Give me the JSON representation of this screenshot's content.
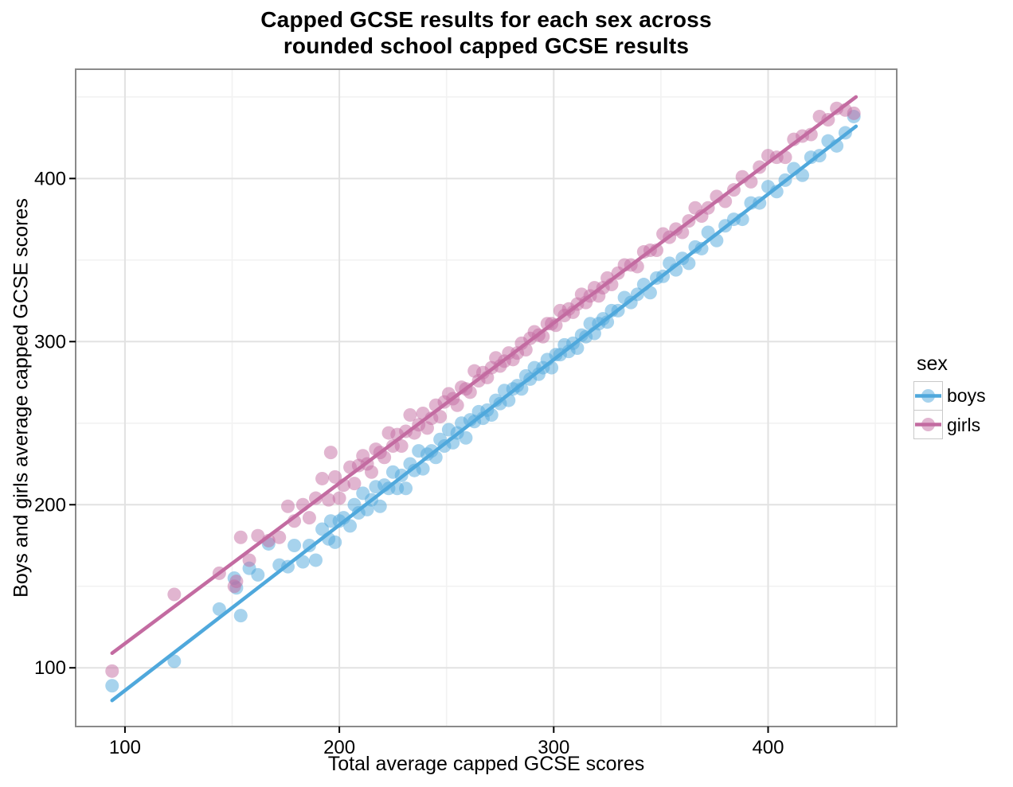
{
  "figure": {
    "title": "Capped GCSE results for each sex across\nrounded school capped GCSE results",
    "x_axis": {
      "label": "Total average capped GCSE scores"
    },
    "y_axis": {
      "label": "Boys and girls average capped GCSE scores"
    },
    "legend": {
      "title": "sex",
      "items": [
        {
          "label": "boys",
          "color": "#4FA8DC"
        },
        {
          "label": "girls",
          "color": "#C36BA1"
        }
      ]
    }
  },
  "style": {
    "boys_color": "#4FA8DC",
    "girls_color": "#C36BA1",
    "grid_major": "#e2e2e2",
    "grid_minor": "#f2f2f2",
    "panel_border": "#8a8a8a",
    "tick_color": "#000000",
    "point_opacity": 0.5
  },
  "chart_data": {
    "type": "scatter",
    "title": "Capped GCSE results for each sex across rounded school capped GCSE results",
    "xlabel": "Total average capped GCSE scores",
    "ylabel": "Boys and girls average capped GCSE scores",
    "xlim": [
      77,
      460
    ],
    "ylim": [
      64,
      467
    ],
    "x_ticks": [
      100,
      200,
      300,
      400
    ],
    "y_ticks": [
      100,
      200,
      300,
      400
    ],
    "x_minor_ticks": [
      150,
      250,
      350,
      450
    ],
    "y_minor_ticks": [
      150,
      250,
      350,
      450
    ],
    "grid": true,
    "legend_position": "right",
    "series": [
      {
        "name": "boys",
        "color": "#4FA8DC",
        "trend_line": {
          "x1": 94,
          "y1": 80,
          "x2": 441,
          "y2": 432
        },
        "points": [
          [
            94,
            89
          ],
          [
            123,
            104
          ],
          [
            144,
            136
          ],
          [
            151,
            155
          ],
          [
            152,
            149
          ],
          [
            154,
            132
          ],
          [
            158,
            161
          ],
          [
            162,
            157
          ],
          [
            167,
            176
          ],
          [
            172,
            163
          ],
          [
            176,
            162
          ],
          [
            179,
            175
          ],
          [
            183,
            165
          ],
          [
            186,
            175
          ],
          [
            189,
            166
          ],
          [
            192,
            185
          ],
          [
            195,
            179
          ],
          [
            196,
            190
          ],
          [
            198,
            177
          ],
          [
            200,
            190
          ],
          [
            202,
            192
          ],
          [
            205,
            187
          ],
          [
            207,
            200
          ],
          [
            209,
            195
          ],
          [
            211,
            207
          ],
          [
            213,
            197
          ],
          [
            215,
            203
          ],
          [
            217,
            211
          ],
          [
            219,
            199
          ],
          [
            221,
            212
          ],
          [
            223,
            210
          ],
          [
            225,
            220
          ],
          [
            227,
            210
          ],
          [
            229,
            218
          ],
          [
            231,
            210
          ],
          [
            233,
            225
          ],
          [
            235,
            221
          ],
          [
            237,
            233
          ],
          [
            239,
            222
          ],
          [
            241,
            231
          ],
          [
            243,
            233
          ],
          [
            245,
            229
          ],
          [
            247,
            240
          ],
          [
            249,
            236
          ],
          [
            251,
            246
          ],
          [
            253,
            238
          ],
          [
            255,
            244
          ],
          [
            257,
            250
          ],
          [
            259,
            241
          ],
          [
            261,
            252
          ],
          [
            263,
            251
          ],
          [
            265,
            257
          ],
          [
            267,
            253
          ],
          [
            269,
            258
          ],
          [
            271,
            255
          ],
          [
            273,
            264
          ],
          [
            275,
            262
          ],
          [
            277,
            270
          ],
          [
            279,
            264
          ],
          [
            281,
            271
          ],
          [
            283,
            273
          ],
          [
            285,
            271
          ],
          [
            287,
            279
          ],
          [
            289,
            277
          ],
          [
            291,
            284
          ],
          [
            293,
            280
          ],
          [
            295,
            284
          ],
          [
            297,
            289
          ],
          [
            299,
            284
          ],
          [
            301,
            292
          ],
          [
            303,
            292
          ],
          [
            305,
            298
          ],
          [
            307,
            294
          ],
          [
            309,
            299
          ],
          [
            311,
            296
          ],
          [
            313,
            304
          ],
          [
            315,
            303
          ],
          [
            317,
            311
          ],
          [
            319,
            305
          ],
          [
            321,
            311
          ],
          [
            323,
            314
          ],
          [
            325,
            312
          ],
          [
            327,
            319
          ],
          [
            330,
            319
          ],
          [
            333,
            327
          ],
          [
            336,
            324
          ],
          [
            339,
            329
          ],
          [
            342,
            335
          ],
          [
            345,
            330
          ],
          [
            348,
            339
          ],
          [
            351,
            340
          ],
          [
            354,
            348
          ],
          [
            357,
            344
          ],
          [
            360,
            351
          ],
          [
            363,
            348
          ],
          [
            366,
            358
          ],
          [
            369,
            357
          ],
          [
            372,
            367
          ],
          [
            376,
            362
          ],
          [
            380,
            371
          ],
          [
            384,
            375
          ],
          [
            388,
            375
          ],
          [
            392,
            385
          ],
          [
            396,
            385
          ],
          [
            400,
            395
          ],
          [
            404,
            392
          ],
          [
            408,
            399
          ],
          [
            412,
            406
          ],
          [
            416,
            402
          ],
          [
            420,
            413
          ],
          [
            424,
            414
          ],
          [
            428,
            423
          ],
          [
            432,
            420
          ],
          [
            436,
            428
          ],
          [
            440,
            438
          ]
        ]
      },
      {
        "name": "girls",
        "color": "#C36BA1",
        "trend_line": {
          "x1": 94,
          "y1": 109,
          "x2": 441,
          "y2": 450
        },
        "points": [
          [
            94,
            98
          ],
          [
            123,
            145
          ],
          [
            144,
            158
          ],
          [
            151,
            150
          ],
          [
            152,
            153
          ],
          [
            154,
            180
          ],
          [
            158,
            166
          ],
          [
            162,
            181
          ],
          [
            167,
            178
          ],
          [
            172,
            180
          ],
          [
            176,
            199
          ],
          [
            179,
            190
          ],
          [
            183,
            200
          ],
          [
            186,
            192
          ],
          [
            189,
            204
          ],
          [
            192,
            216
          ],
          [
            195,
            203
          ],
          [
            196,
            232
          ],
          [
            198,
            217
          ],
          [
            200,
            204
          ],
          [
            202,
            212
          ],
          [
            205,
            223
          ],
          [
            207,
            213
          ],
          [
            209,
            224
          ],
          [
            211,
            230
          ],
          [
            213,
            225
          ],
          [
            215,
            220
          ],
          [
            217,
            234
          ],
          [
            219,
            232
          ],
          [
            221,
            229
          ],
          [
            223,
            244
          ],
          [
            225,
            236
          ],
          [
            227,
            243
          ],
          [
            229,
            236
          ],
          [
            231,
            245
          ],
          [
            233,
            255
          ],
          [
            235,
            244
          ],
          [
            237,
            249
          ],
          [
            239,
            256
          ],
          [
            241,
            247
          ],
          [
            243,
            253
          ],
          [
            245,
            261
          ],
          [
            247,
            254
          ],
          [
            249,
            263
          ],
          [
            251,
            268
          ],
          [
            253,
            265
          ],
          [
            255,
            261
          ],
          [
            257,
            272
          ],
          [
            259,
            271
          ],
          [
            261,
            269
          ],
          [
            263,
            282
          ],
          [
            265,
            276
          ],
          [
            267,
            281
          ],
          [
            269,
            278
          ],
          [
            271,
            284
          ],
          [
            273,
            290
          ],
          [
            275,
            285
          ],
          [
            277,
            288
          ],
          [
            279,
            293
          ],
          [
            281,
            289
          ],
          [
            283,
            293
          ],
          [
            285,
            299
          ],
          [
            287,
            295
          ],
          [
            289,
            302
          ],
          [
            291,
            306
          ],
          [
            293,
            304
          ],
          [
            295,
            303
          ],
          [
            297,
            311
          ],
          [
            299,
            311
          ],
          [
            301,
            310
          ],
          [
            303,
            319
          ],
          [
            305,
            316
          ],
          [
            307,
            320
          ],
          [
            309,
            318
          ],
          [
            311,
            323
          ],
          [
            313,
            329
          ],
          [
            315,
            324
          ],
          [
            317,
            328
          ],
          [
            319,
            333
          ],
          [
            321,
            328
          ],
          [
            323,
            333
          ],
          [
            325,
            339
          ],
          [
            327,
            335
          ],
          [
            330,
            342
          ],
          [
            333,
            347
          ],
          [
            336,
            347
          ],
          [
            339,
            346
          ],
          [
            342,
            355
          ],
          [
            345,
            356
          ],
          [
            348,
            356
          ],
          [
            351,
            366
          ],
          [
            354,
            364
          ],
          [
            357,
            369
          ],
          [
            360,
            367
          ],
          [
            363,
            374
          ],
          [
            366,
            382
          ],
          [
            369,
            377
          ],
          [
            372,
            382
          ],
          [
            376,
            389
          ],
          [
            380,
            386
          ],
          [
            384,
            393
          ],
          [
            388,
            401
          ],
          [
            392,
            398
          ],
          [
            396,
            407
          ],
          [
            400,
            414
          ],
          [
            404,
            413
          ],
          [
            408,
            413
          ],
          [
            412,
            424
          ],
          [
            416,
            426
          ],
          [
            420,
            427
          ],
          [
            424,
            438
          ],
          [
            428,
            436
          ],
          [
            432,
            443
          ],
          [
            436,
            442
          ],
          [
            440,
            440
          ]
        ]
      }
    ]
  }
}
